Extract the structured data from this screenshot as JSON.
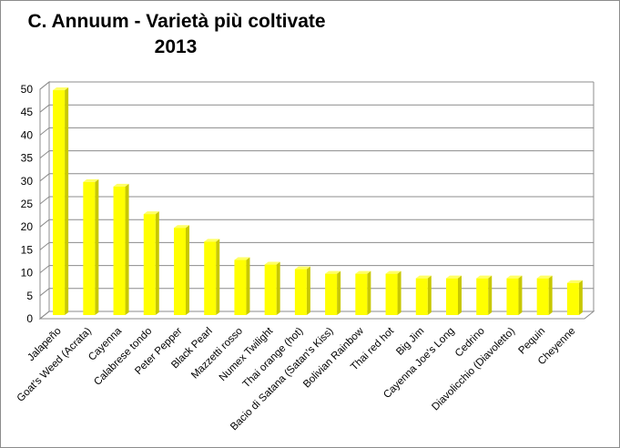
{
  "chart_data": {
    "type": "bar",
    "title": "C. Annuum - Varietà più coltivate",
    "subtitle": "2013",
    "xlabel": "",
    "ylabel": "",
    "ylim": [
      0,
      50
    ],
    "yticks": [
      0,
      5,
      10,
      15,
      20,
      25,
      30,
      35,
      40,
      45,
      50
    ],
    "grid": true,
    "legend": "none",
    "bar_color": "#ffff00",
    "bar_side_color": "#c8c800",
    "bar_top_color": "#ffff66",
    "categories": [
      "Jalapeño",
      "Goat's Weed (Acrata)",
      "Cayenna",
      "Calabrese tondo",
      "Peter Pepper",
      "Black Pearl",
      "Mazzetti rosso",
      "Numex Twilight",
      "Thai orange (hot)",
      "Bacio di Satana (Satan's Kiss)",
      "Bolivian Rainbow",
      "Thai red hot",
      "Big Jim",
      "Cayenna Joe's Long",
      "Cedrino",
      "Diavolicchio (Diavoletto)",
      "Pequin",
      "Cheyenne"
    ],
    "values": [
      49,
      29,
      28,
      22,
      19,
      16,
      12,
      11,
      10,
      9,
      9,
      9,
      8,
      8,
      8,
      8,
      8,
      7
    ]
  }
}
